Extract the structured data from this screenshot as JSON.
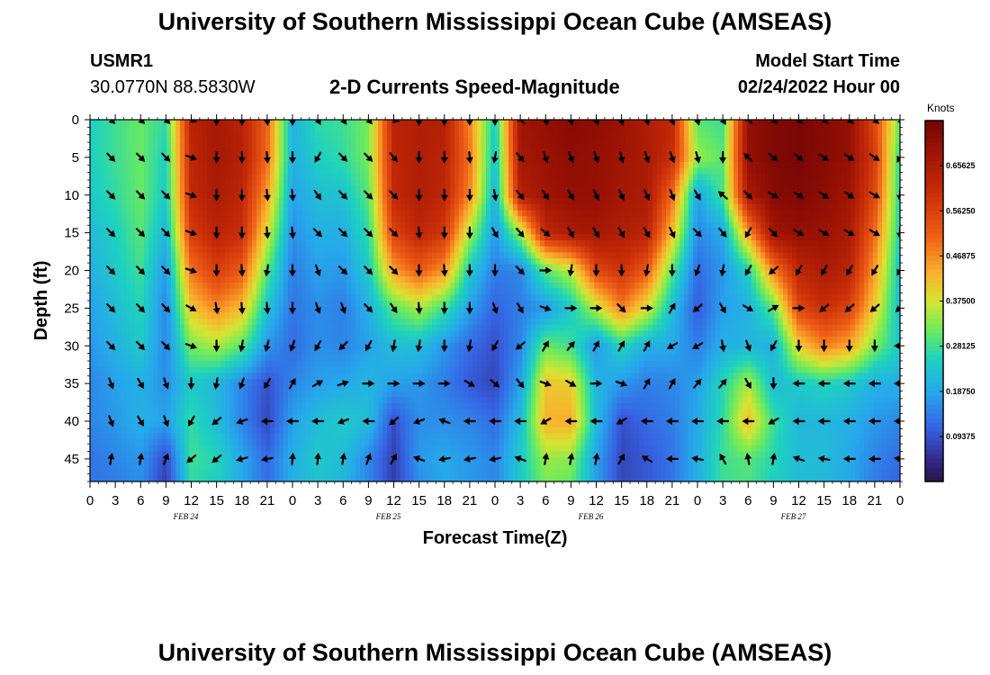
{
  "header": {
    "title": "University of Southern Mississippi Ocean Cube (AMSEAS)",
    "station_id": "USMR1",
    "coordinates": "30.0770N  88.5830W",
    "product": "2-D Currents Speed-Magnitude",
    "model_start_label": "Model Start Time",
    "model_start_value": "02/24/2022 Hour 00"
  },
  "footer": {
    "title": "University of Southern Mississippi Ocean Cube (AMSEAS)"
  },
  "chart_data": {
    "type": "heatmap",
    "title": "2-D Currents Speed-Magnitude",
    "xlabel": "Forecast Time(Z)",
    "ylabel": "Depth (ft)",
    "colorbar_label": "Knots",
    "colorbar_ticks": [
      "0.65625",
      "0.56250",
      "0.46875",
      "0.37500",
      "0.28125",
      "0.18750",
      "0.09375"
    ],
    "colorbar_range": [
      0.0,
      0.75
    ],
    "x_ticks": [
      "0",
      "3",
      "6",
      "9",
      "12",
      "15",
      "18",
      "21",
      "0",
      "3",
      "6",
      "9",
      "12",
      "15",
      "18",
      "21",
      "0",
      "3",
      "6",
      "9",
      "12",
      "15",
      "18",
      "21",
      "0",
      "3",
      "6",
      "9",
      "12",
      "15",
      "18",
      "21",
      "0"
    ],
    "date_labels": [
      {
        "label": "FEB 24",
        "hour": 12
      },
      {
        "label": "FEB 25",
        "hour": 36
      },
      {
        "label": "FEB 26",
        "hour": 60
      },
      {
        "label": "FEB 27",
        "hour": 84
      }
    ],
    "x_range_hours": [
      0,
      96
    ],
    "y_ticks": [
      "0",
      "5",
      "10",
      "15",
      "20",
      "25",
      "30",
      "35",
      "40",
      "45"
    ],
    "y_range_ft": [
      0,
      48
    ],
    "hours": [
      0,
      3,
      6,
      9,
      12,
      15,
      18,
      21,
      24,
      27,
      30,
      33,
      36,
      39,
      42,
      45,
      48,
      51,
      54,
      57,
      60,
      63,
      66,
      69,
      72,
      75,
      78,
      81,
      84,
      87,
      90,
      93,
      96
    ],
    "depths_ft": [
      0,
      5,
      10,
      15,
      20,
      25,
      30,
      35,
      40,
      45,
      48
    ],
    "speed_knots": [
      [
        0.25,
        0.28,
        0.31,
        0.27,
        0.63,
        0.67,
        0.63,
        0.51,
        0.2,
        0.27,
        0.28,
        0.32,
        0.63,
        0.65,
        0.64,
        0.47,
        0.24,
        0.68,
        0.7,
        0.72,
        0.71,
        0.69,
        0.65,
        0.62,
        0.3,
        0.28,
        0.7,
        0.73,
        0.74,
        0.72,
        0.7,
        0.55,
        0.31
      ],
      [
        0.25,
        0.28,
        0.31,
        0.25,
        0.62,
        0.67,
        0.64,
        0.5,
        0.2,
        0.25,
        0.27,
        0.32,
        0.62,
        0.65,
        0.63,
        0.49,
        0.22,
        0.67,
        0.69,
        0.71,
        0.7,
        0.68,
        0.66,
        0.6,
        0.34,
        0.3,
        0.7,
        0.73,
        0.74,
        0.72,
        0.7,
        0.57,
        0.27
      ],
      [
        0.24,
        0.27,
        0.31,
        0.24,
        0.61,
        0.66,
        0.62,
        0.45,
        0.18,
        0.22,
        0.23,
        0.3,
        0.61,
        0.65,
        0.62,
        0.47,
        0.2,
        0.64,
        0.68,
        0.7,
        0.7,
        0.67,
        0.66,
        0.5,
        0.18,
        0.29,
        0.66,
        0.72,
        0.73,
        0.71,
        0.68,
        0.55,
        0.26
      ],
      [
        0.22,
        0.25,
        0.3,
        0.21,
        0.57,
        0.63,
        0.6,
        0.38,
        0.16,
        0.2,
        0.2,
        0.27,
        0.56,
        0.62,
        0.58,
        0.35,
        0.17,
        0.34,
        0.62,
        0.66,
        0.67,
        0.65,
        0.63,
        0.42,
        0.15,
        0.19,
        0.45,
        0.68,
        0.7,
        0.69,
        0.66,
        0.5,
        0.25
      ],
      [
        0.2,
        0.24,
        0.28,
        0.17,
        0.49,
        0.57,
        0.52,
        0.3,
        0.14,
        0.18,
        0.17,
        0.24,
        0.45,
        0.52,
        0.46,
        0.24,
        0.14,
        0.15,
        0.3,
        0.36,
        0.55,
        0.59,
        0.52,
        0.3,
        0.12,
        0.17,
        0.25,
        0.48,
        0.62,
        0.66,
        0.63,
        0.45,
        0.23
      ],
      [
        0.18,
        0.22,
        0.26,
        0.15,
        0.41,
        0.47,
        0.42,
        0.23,
        0.13,
        0.16,
        0.14,
        0.2,
        0.3,
        0.35,
        0.28,
        0.18,
        0.11,
        0.14,
        0.17,
        0.24,
        0.36,
        0.48,
        0.38,
        0.22,
        0.1,
        0.18,
        0.2,
        0.3,
        0.55,
        0.6,
        0.56,
        0.4,
        0.22
      ],
      [
        0.17,
        0.2,
        0.24,
        0.15,
        0.32,
        0.35,
        0.3,
        0.17,
        0.12,
        0.16,
        0.15,
        0.18,
        0.22,
        0.22,
        0.17,
        0.12,
        0.09,
        0.15,
        0.31,
        0.28,
        0.17,
        0.26,
        0.2,
        0.19,
        0.14,
        0.2,
        0.21,
        0.2,
        0.4,
        0.48,
        0.44,
        0.32,
        0.24
      ],
      [
        0.15,
        0.18,
        0.2,
        0.16,
        0.24,
        0.21,
        0.15,
        0.09,
        0.15,
        0.18,
        0.19,
        0.21,
        0.18,
        0.17,
        0.14,
        0.1,
        0.08,
        0.18,
        0.41,
        0.4,
        0.21,
        0.17,
        0.14,
        0.15,
        0.18,
        0.26,
        0.35,
        0.22,
        0.24,
        0.26,
        0.24,
        0.2,
        0.2
      ],
      [
        0.15,
        0.17,
        0.2,
        0.18,
        0.27,
        0.22,
        0.15,
        0.08,
        0.18,
        0.22,
        0.24,
        0.22,
        0.09,
        0.16,
        0.16,
        0.15,
        0.12,
        0.22,
        0.43,
        0.44,
        0.22,
        0.09,
        0.12,
        0.14,
        0.19,
        0.27,
        0.42,
        0.28,
        0.21,
        0.21,
        0.2,
        0.17,
        0.15
      ],
      [
        0.13,
        0.15,
        0.17,
        0.08,
        0.28,
        0.26,
        0.19,
        0.12,
        0.2,
        0.24,
        0.22,
        0.15,
        0.07,
        0.17,
        0.19,
        0.17,
        0.15,
        0.24,
        0.34,
        0.33,
        0.18,
        0.08,
        0.1,
        0.13,
        0.2,
        0.28,
        0.3,
        0.26,
        0.22,
        0.22,
        0.19,
        0.15,
        0.12
      ],
      [
        0.13,
        0.14,
        0.16,
        0.07,
        0.27,
        0.25,
        0.19,
        0.12,
        0.2,
        0.23,
        0.21,
        0.15,
        0.07,
        0.16,
        0.19,
        0.17,
        0.15,
        0.24,
        0.32,
        0.31,
        0.18,
        0.08,
        0.1,
        0.13,
        0.2,
        0.28,
        0.29,
        0.25,
        0.22,
        0.21,
        0.19,
        0.14,
        0.11
      ]
    ],
    "arrow_depths_ft": [
      0,
      5,
      10,
      15,
      20,
      25,
      30,
      35,
      40,
      45
    ],
    "arrow_hours": [
      2.5,
      6,
      9,
      12,
      15,
      18,
      21,
      24,
      27,
      30,
      33,
      36,
      39,
      42,
      45,
      48,
      51,
      54,
      57,
      60,
      63,
      66,
      69,
      72,
      75,
      78,
      81,
      84,
      87,
      90,
      93,
      96
    ],
    "arrow_directions_deg": [
      [
        225,
        225,
        225,
        200,
        270,
        270,
        265,
        270,
        240,
        235,
        230,
        200,
        270,
        270,
        270,
        270,
        45,
        250,
        255,
        250,
        260,
        255,
        250,
        255,
        240,
        45,
        225,
        225,
        225,
        225,
        225,
        225
      ],
      [
        225,
        225,
        225,
        200,
        270,
        270,
        265,
        270,
        300,
        225,
        225,
        230,
        270,
        270,
        265,
        280,
        230,
        250,
        250,
        250,
        255,
        250,
        250,
        255,
        270,
        45,
        220,
        220,
        215,
        215,
        215,
        300
      ],
      [
        225,
        225,
        225,
        200,
        270,
        270,
        265,
        265,
        235,
        225,
        225,
        225,
        270,
        270,
        270,
        260,
        230,
        235,
        240,
        245,
        245,
        245,
        250,
        240,
        40,
        225,
        210,
        215,
        215,
        215,
        210,
        270
      ],
      [
        225,
        225,
        225,
        200,
        270,
        270,
        265,
        265,
        225,
        225,
        225,
        225,
        265,
        270,
        270,
        240,
        230,
        220,
        240,
        240,
        240,
        240,
        245,
        225,
        230,
        300,
        225,
        210,
        210,
        210,
        210,
        270
      ],
      [
        225,
        225,
        225,
        200,
        270,
        265,
        280,
        270,
        250,
        225,
        225,
        225,
        270,
        265,
        270,
        270,
        225,
        180,
        280,
        270,
        270,
        280,
        270,
        290,
        280,
        300,
        320,
        300,
        300,
        300,
        300,
        300
      ],
      [
        225,
        225,
        225,
        210,
        260,
        265,
        265,
        270,
        250,
        250,
        225,
        235,
        265,
        270,
        270,
        250,
        240,
        200,
        180,
        180,
        225,
        180,
        120,
        320,
        240,
        210,
        150,
        180,
        320,
        320,
        320,
        320
      ],
      [
        225,
        225,
        225,
        200,
        270,
        280,
        285,
        290,
        300,
        315,
        300,
        280,
        280,
        270,
        280,
        300,
        320,
        120,
        130,
        120,
        120,
        120,
        330,
        330,
        260,
        250,
        300,
        270,
        270,
        270,
        270,
        0
      ],
      [
        250,
        240,
        250,
        270,
        280,
        290,
        300,
        120,
        150,
        160,
        180,
        180,
        180,
        180,
        210,
        220,
        230,
        200,
        210,
        180,
        200,
        120,
        120,
        130,
        130,
        240,
        270,
        0,
        0,
        0,
        0,
        0
      ],
      [
        250,
        240,
        250,
        300,
        320,
        340,
        0,
        0,
        0,
        340,
        0,
        320,
        340,
        20,
        0,
        0,
        0,
        330,
        0,
        0,
        330,
        0,
        0,
        0,
        0,
        0,
        330,
        0,
        0,
        0,
        0,
        0
      ],
      [
        100,
        100,
        110,
        320,
        320,
        345,
        350,
        95,
        95,
        100,
        110,
        120,
        20,
        350,
        350,
        350,
        20,
        100,
        100,
        100,
        120,
        30,
        0,
        10,
        60,
        80,
        100,
        20,
        10,
        0,
        0,
        10
      ]
    ]
  }
}
